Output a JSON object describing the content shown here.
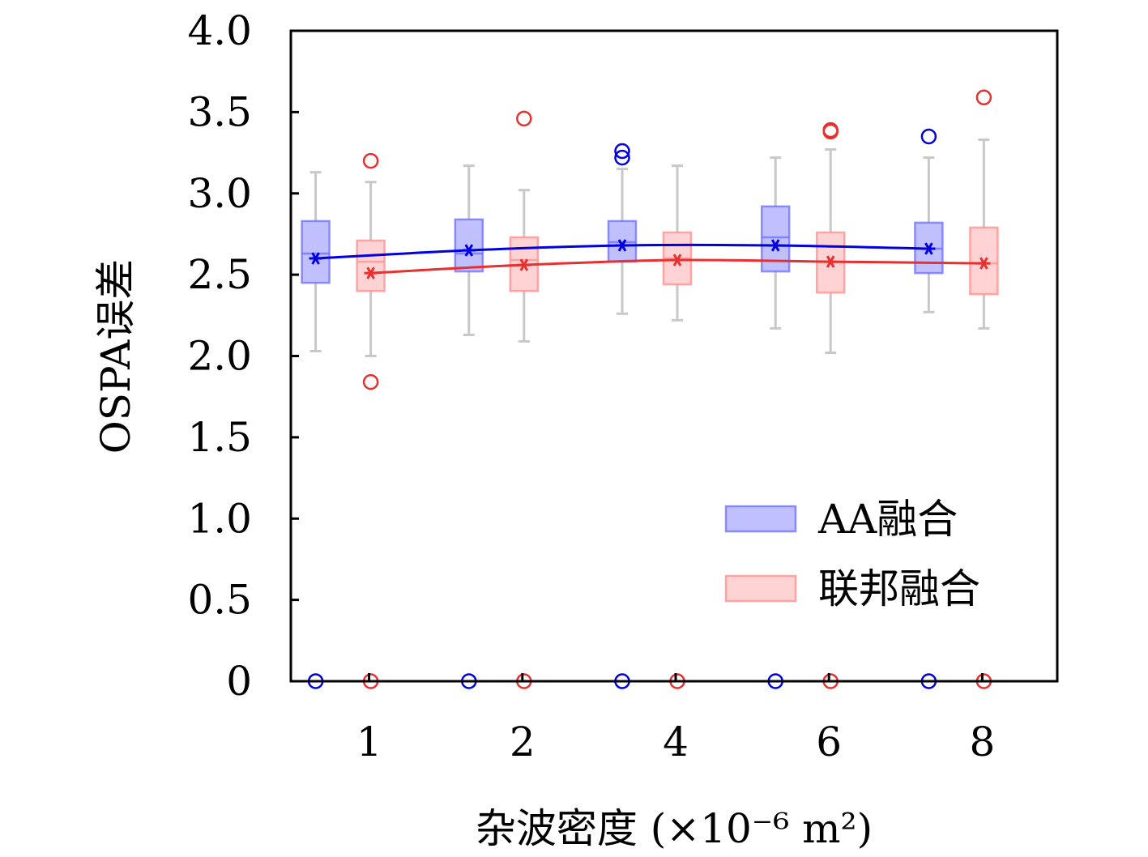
{
  "chart_data": {
    "type": "box",
    "xlabel": "杂波密度 (×10⁻⁶ m²)",
    "ylabel": "OSPA误差",
    "categories": [
      "1",
      "2",
      "4",
      "6",
      "8"
    ],
    "ylim": [
      0,
      4.0
    ],
    "yticks": [
      "0",
      "0.5",
      "1.0",
      "1.5",
      "2.0",
      "2.5",
      "3.0",
      "3.5",
      "4.0"
    ],
    "legend_position": "lower-right",
    "colors": {
      "AA": "#0000e0",
      "federated": "#e83030",
      "whisker": "#c8c8c8"
    },
    "series": [
      {
        "name": "AA融合",
        "mean": [
          2.6,
          2.65,
          2.68,
          2.68,
          2.66
        ],
        "median": [
          2.63,
          2.63,
          2.7,
          2.73,
          2.66
        ],
        "q1": [
          2.45,
          2.52,
          2.58,
          2.52,
          2.51
        ],
        "q3": [
          2.83,
          2.84,
          2.83,
          2.92,
          2.82
        ],
        "whisker_low": [
          2.03,
          2.13,
          2.26,
          2.17,
          2.27
        ],
        "whisker_high": [
          3.13,
          3.17,
          3.15,
          3.22,
          3.22
        ],
        "outliers": [
          [
            0
          ],
          [
            0
          ],
          [
            3.26,
            3.22,
            0
          ],
          [
            0
          ],
          [
            3.35,
            0
          ]
        ]
      },
      {
        "name": "联邦融合",
        "mean": [
          2.51,
          2.56,
          2.59,
          2.58,
          2.57
        ],
        "median": [
          2.58,
          2.59,
          2.6,
          2.58,
          2.57
        ],
        "q1": [
          2.4,
          2.4,
          2.44,
          2.39,
          2.38
        ],
        "q3": [
          2.71,
          2.73,
          2.76,
          2.76,
          2.79
        ],
        "whisker_low": [
          2.0,
          2.09,
          2.22,
          2.02,
          2.17
        ],
        "whisker_high": [
          3.07,
          3.02,
          3.17,
          3.27,
          3.33
        ],
        "outliers": [
          [
            3.2,
            1.84,
            0
          ],
          [
            3.46,
            0
          ],
          [
            0
          ],
          [
            3.39,
            3.38,
            0
          ],
          [
            3.59,
            0
          ]
        ]
      }
    ]
  }
}
